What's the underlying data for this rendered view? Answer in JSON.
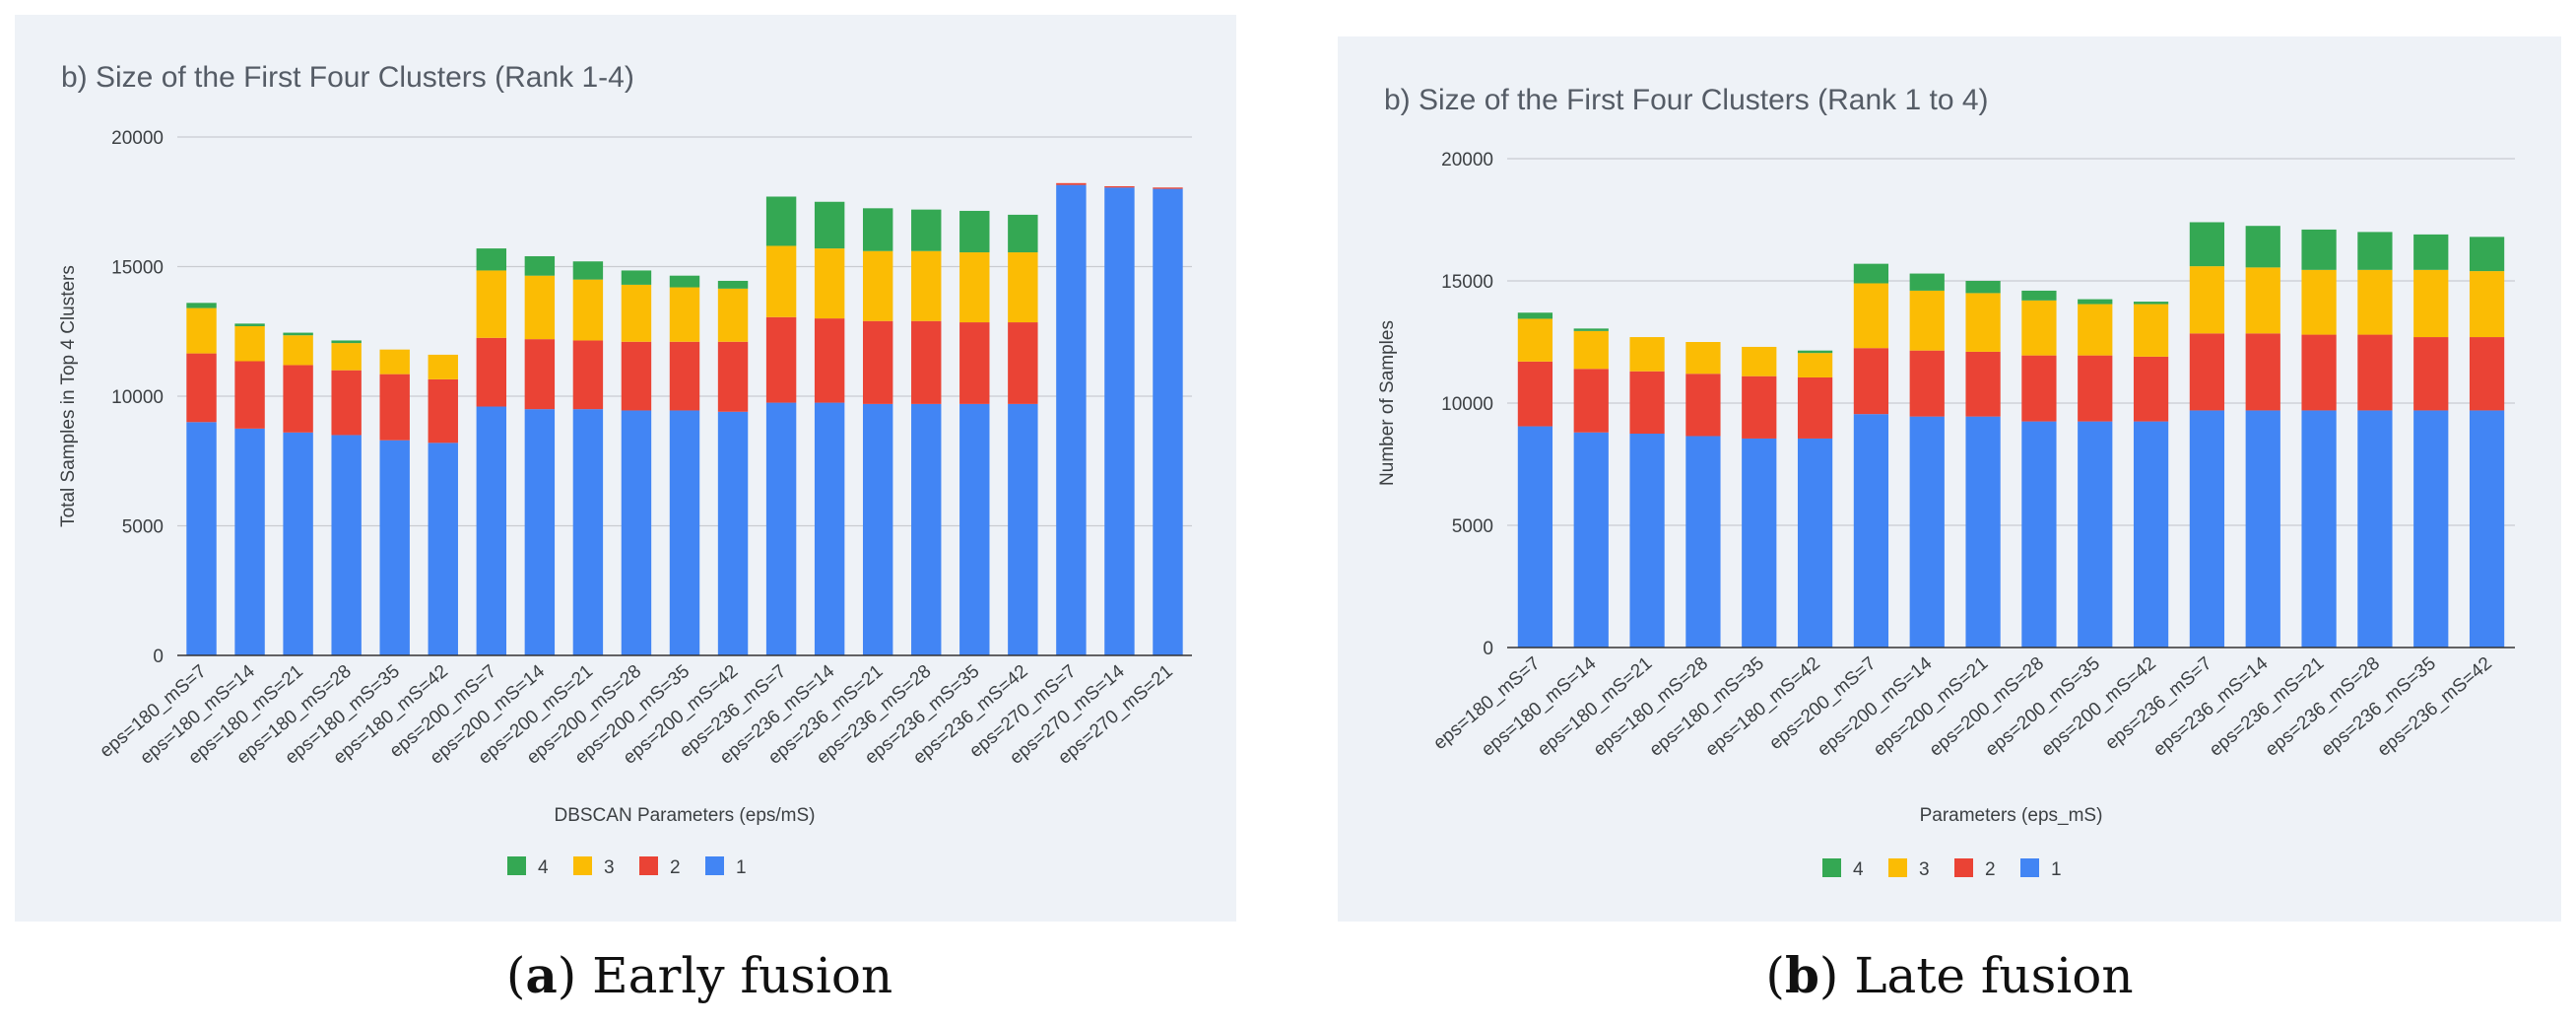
{
  "colors": {
    "1": "#4285f4",
    "2": "#ea4335",
    "3": "#fbbc04",
    "4": "#34a853",
    "grid": "#c9ccd1",
    "axis": "#333333"
  },
  "captions": [
    {
      "letter": "a",
      "text": "Early fusion"
    },
    {
      "letter": "b",
      "text": "Late fusion"
    }
  ],
  "chart_data": [
    {
      "type": "bar",
      "stacked": true,
      "title": "b) Size of the First Four Clusters (Rank 1-4)",
      "xlabel": "DBSCAN Parameters (eps/mS)",
      "ylabel": "Total Samples in Top 4 Clusters",
      "ylim": [
        0,
        20000
      ],
      "yticks": [
        0,
        5000,
        10000,
        15000,
        20000
      ],
      "grid": true,
      "legend": "bottom",
      "legend_order": [
        "4",
        "3",
        "2",
        "1"
      ],
      "categories": [
        "eps=180_mS=7",
        "eps=180_mS=14",
        "eps=180_mS=21",
        "eps=180_mS=28",
        "eps=180_mS=35",
        "eps=180_mS=42",
        "eps=200_mS=7",
        "eps=200_mS=14",
        "eps=200_mS=21",
        "eps=200_mS=28",
        "eps=200_mS=35",
        "eps=200_mS=42",
        "eps=236_mS=7",
        "eps=236_mS=14",
        "eps=236_mS=21",
        "eps=236_mS=28",
        "eps=236_mS=35",
        "eps=236_mS=42",
        "eps=270_mS=7",
        "eps=270_mS=14",
        "eps=270_mS=21"
      ],
      "series": [
        {
          "name": "1",
          "values": [
            9000,
            8750,
            8600,
            8500,
            8300,
            8200,
            9600,
            9500,
            9500,
            9450,
            9450,
            9400,
            9750,
            9750,
            9700,
            9700,
            9700,
            9700,
            18150,
            18050,
            18000
          ]
        },
        {
          "name": "2",
          "values": [
            2650,
            2600,
            2600,
            2500,
            2550,
            2450,
            2650,
            2700,
            2650,
            2650,
            2650,
            2700,
            3300,
            3250,
            3200,
            3200,
            3150,
            3150,
            70,
            50,
            50
          ]
        },
        {
          "name": "3",
          "values": [
            1750,
            1350,
            1150,
            1050,
            950,
            950,
            2600,
            2450,
            2350,
            2200,
            2100,
            2050,
            2750,
            2700,
            2700,
            2700,
            2700,
            2700,
            0,
            0,
            0
          ]
        },
        {
          "name": "4",
          "values": [
            200,
            100,
            100,
            100,
            0,
            0,
            850,
            750,
            700,
            550,
            450,
            300,
            1900,
            1800,
            1650,
            1600,
            1600,
            1450,
            0,
            0,
            0
          ]
        }
      ]
    },
    {
      "type": "bar",
      "stacked": true,
      "title": "b) Size of the First Four Clusters (Rank 1 to 4)",
      "xlabel": "Parameters (eps_mS)",
      "ylabel": "Number of Samples",
      "ylim": [
        0,
        20000
      ],
      "yticks": [
        0,
        5000,
        10000,
        15000,
        20000
      ],
      "grid": true,
      "legend": "bottom",
      "legend_order": [
        "4",
        "3",
        "2",
        "1"
      ],
      "categories": [
        "eps=180_mS=7",
        "eps=180_mS=14",
        "eps=180_mS=21",
        "eps=180_mS=28",
        "eps=180_mS=35",
        "eps=180_mS=42",
        "eps=200_mS=7",
        "eps=200_mS=14",
        "eps=200_mS=21",
        "eps=200_mS=28",
        "eps=200_mS=35",
        "eps=200_mS=42",
        "eps=236_mS=7",
        "eps=236_mS=14",
        "eps=236_mS=21",
        "eps=236_mS=28",
        "eps=236_mS=35",
        "eps=236_mS=42"
      ],
      "series": [
        {
          "name": "1",
          "values": [
            9050,
            8800,
            8750,
            8650,
            8550,
            8550,
            9550,
            9450,
            9450,
            9250,
            9250,
            9250,
            9700,
            9700,
            9700,
            9700,
            9700,
            9700
          ]
        },
        {
          "name": "2",
          "values": [
            2650,
            2600,
            2550,
            2550,
            2550,
            2500,
            2700,
            2700,
            2650,
            2700,
            2700,
            2650,
            3150,
            3150,
            3100,
            3100,
            3000,
            3000
          ]
        },
        {
          "name": "3",
          "values": [
            1750,
            1550,
            1400,
            1300,
            1200,
            1000,
            2650,
            2450,
            2400,
            2250,
            2100,
            2150,
            2750,
            2700,
            2650,
            2650,
            2750,
            2700
          ]
        },
        {
          "name": "4",
          "values": [
            250,
            100,
            0,
            0,
            0,
            100,
            800,
            700,
            500,
            400,
            200,
            100,
            1800,
            1700,
            1650,
            1550,
            1450,
            1400
          ]
        }
      ]
    }
  ]
}
